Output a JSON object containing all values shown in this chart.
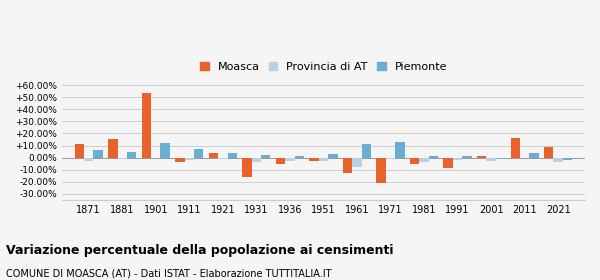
{
  "years": [
    1871,
    1881,
    1901,
    1911,
    1921,
    1931,
    1936,
    1951,
    1961,
    1971,
    1981,
    1991,
    2001,
    2011,
    2021
  ],
  "moasca": [
    11.0,
    15.5,
    54.0,
    -3.5,
    4.0,
    -16.0,
    -5.0,
    -3.0,
    -12.5,
    -21.0,
    -5.0,
    -9.0,
    1.0,
    16.5,
    9.0
  ],
  "provincia": [
    -3.0,
    -1.5,
    0.0,
    -2.0,
    -1.5,
    -3.5,
    -2.5,
    -2.5,
    -8.0,
    -1.0,
    -4.0,
    -2.0,
    -3.0,
    0.0,
    -3.5
  ],
  "piemonte": [
    6.0,
    5.0,
    12.0,
    7.0,
    3.5,
    2.5,
    1.5,
    3.0,
    11.0,
    13.0,
    1.5,
    1.5,
    -1.5,
    4.0,
    -2.0
  ],
  "moasca_color": "#e8622a",
  "provincia_color": "#b8d0e8",
  "piemonte_color": "#6aaed6",
  "title": "Variazione percentuale della popolazione ai censimenti",
  "subtitle": "COMUNE DI MOASCA (AT) - Dati ISTAT - Elaborazione TUTTITALIA.IT",
  "yticks": [
    -30,
    -20,
    -10,
    0,
    10,
    20,
    30,
    40,
    50,
    60
  ],
  "ylim": [
    -35,
    65
  ],
  "bg_color": "#f5f5f5",
  "grid_color": "#cccccc",
  "bar_width": 0.28
}
